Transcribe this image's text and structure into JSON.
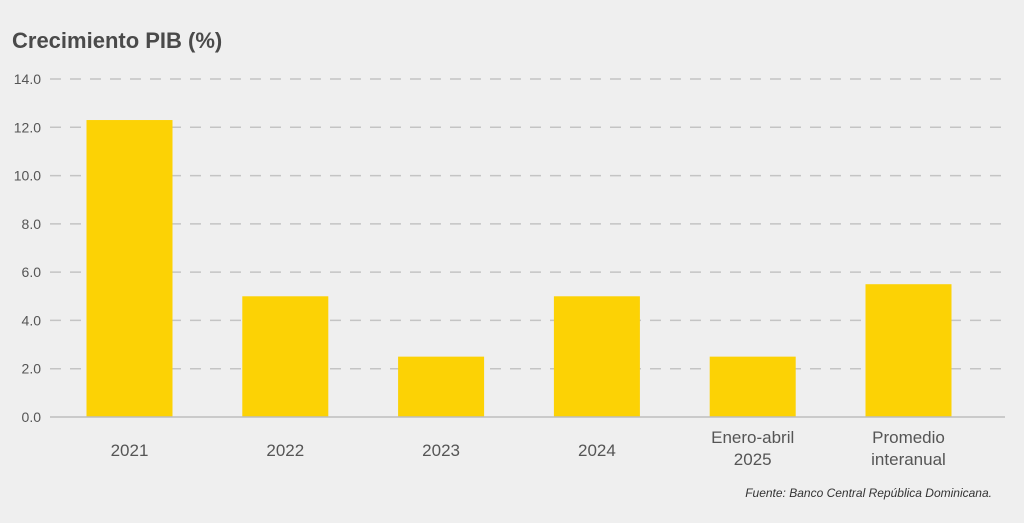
{
  "chart_data": {
    "type": "bar",
    "title": "Crecimiento PIB (%)",
    "categories": [
      [
        "2021"
      ],
      [
        "2022"
      ],
      [
        "2023"
      ],
      [
        "2024"
      ],
      [
        "Enero-abril",
        "2025"
      ],
      [
        "Promedio",
        "interanual"
      ]
    ],
    "values": [
      12.3,
      5.0,
      2.5,
      5.0,
      2.5,
      5.5
    ],
    "yticks": [
      "0.0",
      "2.0",
      "4.0",
      "6.0",
      "8.0",
      "10.0",
      "12.0",
      "14.0"
    ],
    "ylim": [
      0,
      14
    ],
    "xlabel": "",
    "ylabel": "",
    "grid": true,
    "bar_color": "#fcd205",
    "source": "Fuente: Banco Central República Dominicana."
  }
}
